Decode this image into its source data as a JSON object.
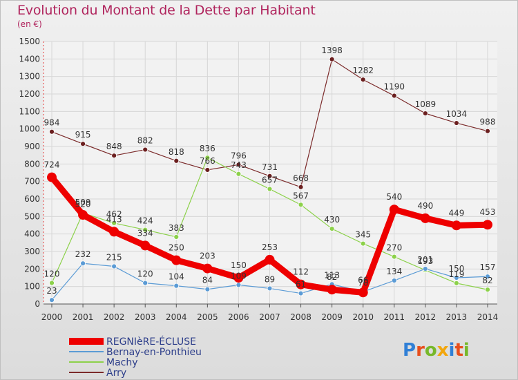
{
  "header": {
    "title": "Evolution du Montant de la Dette par Habitant",
    "unit": "(en €)"
  },
  "logo": {
    "text": "Proxiti",
    "letter_colors": [
      "#2f7fd6",
      "#e84e1b",
      "#77b82a",
      "#f2a60d",
      "#2f7fd6",
      "#e84e1b",
      "#77b82a"
    ]
  },
  "chart_data": {
    "type": "line",
    "title": "Evolution du Montant de la Dette par Habitant",
    "ylabel": "(en €)",
    "xlabel": "",
    "categories": [
      "2000",
      "2001",
      "2002",
      "2003",
      "2004",
      "2005",
      "2006",
      "2007",
      "2008",
      "2009",
      "2010",
      "2011",
      "2012",
      "2013",
      "2014"
    ],
    "yticks": [
      0,
      100,
      200,
      300,
      400,
      500,
      600,
      700,
      800,
      900,
      1000,
      1100,
      1200,
      1300,
      1400,
      1500
    ],
    "ylim": [
      0,
      1500
    ],
    "grid": true,
    "legend_position": "bottom-left",
    "series": [
      {
        "name": "REGNIèRE-ÉCLUSE",
        "color": "#ee0000",
        "width": 9,
        "marker": 7,
        "values": [
          724,
          509,
          413,
          334,
          250,
          203,
          150,
          253,
          112,
          82,
          66,
          540,
          490,
          449,
          453
        ]
      },
      {
        "name": "Bernay-en-Ponthieu",
        "color": "#5b9bd5",
        "width": 1.2,
        "marker": 3.5,
        "values": [
          23,
          232,
          215,
          120,
          104,
          84,
          109,
          89,
          61,
          113,
          70,
          134,
          201,
          150,
          157
        ]
      },
      {
        "name": "Machy",
        "color": "#8cd14a",
        "width": 1.2,
        "marker": 3.5,
        "values": [
          120,
          520,
          462,
          424,
          383,
          836,
          743,
          657,
          567,
          430,
          345,
          270,
          193,
          119,
          82
        ]
      },
      {
        "name": "Arry",
        "color": "#7b2a2a",
        "width": 1.2,
        "marker": 3.5,
        "values": [
          984,
          915,
          848,
          882,
          818,
          766,
          796,
          731,
          668,
          1398,
          1282,
          1190,
          1089,
          1034,
          988
        ]
      }
    ]
  }
}
